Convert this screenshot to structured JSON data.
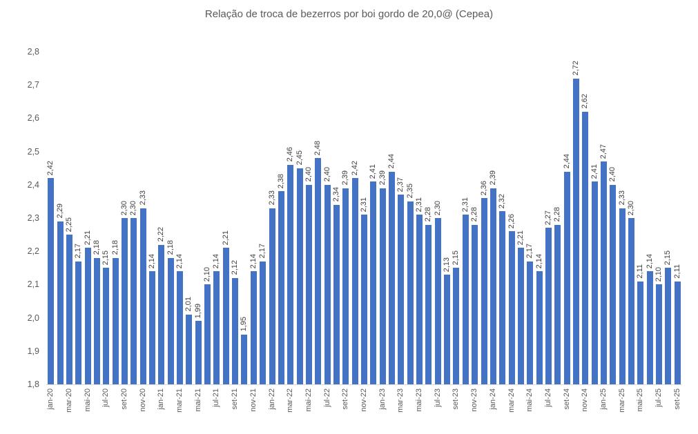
{
  "window": {
    "background": "#ffffff"
  },
  "chart_data": {
    "type": "bar",
    "title": "Relação de troca de bezerros por boi gordo de 20,0@ (Cepea)",
    "categories": [
      "jan-20",
      "fev-20",
      "mar-20",
      "abr-20",
      "mai-20",
      "jun-20",
      "jul-20",
      "ago-20",
      "set-20",
      "out-20",
      "nov-20",
      "dez-20",
      "jan-21",
      "fev-21",
      "mar-21",
      "abr-21",
      "mai-21",
      "jun-21",
      "jul-21",
      "ago-21",
      "set-21",
      "out-21",
      "nov-21",
      "dez-21",
      "jan-22",
      "fev-22",
      "mar-22",
      "abr-22",
      "mai-22",
      "jun-22",
      "jul-22",
      "ago-22",
      "set-22",
      "out-22",
      "nov-22",
      "dez-22",
      "jan-23",
      "fev-23",
      "mar-23",
      "abr-23",
      "mai-23",
      "jun-23",
      "jul-23",
      "ago-23",
      "set-23",
      "out-23",
      "nov-23",
      "dez-23",
      "jan-24",
      "fev-24",
      "mar-24",
      "abr-24",
      "mai-24",
      "jun-24",
      "jul-24",
      "ago-24",
      "set-24",
      "out-24",
      "nov-24",
      "dez-24",
      "jan-25",
      "fev-25",
      "mar-25",
      "abr-25",
      "mai-25",
      "jun-25",
      "jul-25",
      "ago-25",
      "set-25"
    ],
    "values": [
      2.42,
      2.29,
      2.25,
      2.17,
      2.21,
      2.18,
      2.15,
      2.18,
      2.3,
      2.3,
      2.33,
      2.14,
      2.22,
      2.18,
      2.14,
      2.01,
      1.99,
      2.1,
      2.14,
      2.21,
      2.12,
      1.95,
      2.14,
      2.17,
      2.33,
      2.38,
      2.46,
      2.45,
      2.4,
      2.48,
      2.4,
      2.34,
      2.39,
      2.42,
      2.31,
      2.41,
      2.39,
      2.44,
      2.37,
      2.35,
      2.31,
      2.28,
      2.3,
      2.13,
      2.15,
      2.31,
      2.28,
      2.36,
      2.39,
      2.32,
      2.26,
      2.21,
      2.17,
      2.14,
      2.27,
      2.28,
      2.44,
      2.72,
      2.62,
      2.41,
      2.47,
      2.4,
      2.33,
      2.3,
      2.11,
      2.14,
      2.1,
      2.15,
      2.11
    ],
    "data_label_format": "comma-decimal-2",
    "data_labels_rotated": true,
    "ylim": [
      1.8,
      2.8
    ],
    "y_ticks": [
      1.8,
      1.9,
      2.0,
      2.1,
      2.2,
      2.3,
      2.4,
      2.5,
      2.6,
      2.7,
      2.8
    ],
    "y_tick_labels": [
      "1,8",
      "1,9",
      "2,0",
      "2,1",
      "2,2",
      "2,3",
      "2,4",
      "2,5",
      "2,6",
      "2,7",
      "2,8"
    ],
    "x_tick_interval": 2,
    "grid": false,
    "legend": false,
    "xlabel": "",
    "ylabel": "",
    "bar_color": "#4472C4",
    "title_color": "#595959",
    "axis_label_color": "#595959",
    "data_label_color": "#404040",
    "axis_line_color": "#D9D9D9"
  }
}
